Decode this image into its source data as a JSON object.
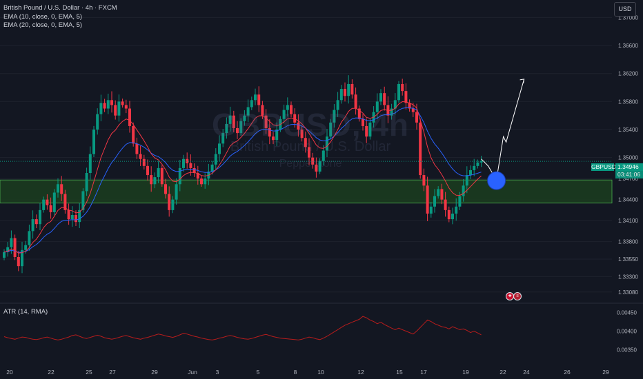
{
  "legend": {
    "title": "British Pound / U.S. Dollar · 4h · FXCM",
    "ema1": "EMA (10, close, 0, EMA, 5)",
    "ema2": "EMA (20, close, 0, EMA, 5)",
    "atr": "ATR (14, RMA)"
  },
  "currency": "USD",
  "watermark": {
    "symbol": "GBPUSD, 4h",
    "name": "British Pound / U.S. Dollar",
    "brand": "Pepperstone"
  },
  "price_tag": {
    "symbol": "GBPUSD",
    "price": "1.34946",
    "countdown": "03:41:06"
  },
  "colors": {
    "up": "#089981",
    "down": "#f23645",
    "ema10": "#f23645",
    "ema20": "#2962ff",
    "zone": "#1b3d1e",
    "zone_edge": "#4caf50"
  },
  "icons": [
    "flag-uk-icon",
    "flag-us-icon"
  ],
  "chart_data": {
    "type": "candlestick",
    "x_ticks": [
      "20",
      "22",
      "25",
      "27",
      "29",
      "Jun",
      "3",
      "5",
      "8",
      "10",
      "12",
      "15",
      "17",
      "19",
      "22",
      "24",
      "26",
      "29"
    ],
    "y_ticks": [
      "1.37000",
      "1.36600",
      "1.36200",
      "1.35800",
      "1.35400",
      "1.35000",
      "1.34700",
      "1.34400",
      "1.34100",
      "1.33800",
      "1.33550",
      "1.33300",
      "1.33080"
    ],
    "atr_ticks": [
      "0.00450",
      "0.00400",
      "0.00350"
    ],
    "ylim": [
      1.3295,
      1.3725
    ],
    "atr_ylim": [
      0.0033,
      0.0047
    ],
    "current_price": 1.34946,
    "zone": [
      1.3435,
      1.3468
    ],
    "closes": [
      1.3365,
      1.3372,
      1.3385,
      1.3358,
      1.3345,
      1.3368,
      1.3375,
      1.3395,
      1.3412,
      1.3405,
      1.3425,
      1.344,
      1.3432,
      1.3422,
      1.345,
      1.3462,
      1.3448,
      1.3425,
      1.3412,
      1.3418,
      1.3408,
      1.3425,
      1.3452,
      1.3478,
      1.3505,
      1.354,
      1.3562,
      1.3578,
      1.357,
      1.3582,
      1.3575,
      1.356,
      1.358,
      1.3575,
      1.357,
      1.3545,
      1.352,
      1.3505,
      1.3498,
      1.3488,
      1.3475,
      1.3462,
      1.3472,
      1.3485,
      1.3462,
      1.3448,
      1.3425,
      1.344,
      1.3462,
      1.3485,
      1.3498,
      1.3492,
      1.3485,
      1.3478,
      1.347,
      1.3462,
      1.347,
      1.348,
      1.349,
      1.3505,
      1.352,
      1.3535,
      1.3548,
      1.356,
      1.3542,
      1.3535,
      1.3552,
      1.356,
      1.3572,
      1.3582,
      1.359,
      1.3575,
      1.356,
      1.3542,
      1.353,
      1.3525,
      1.354,
      1.3555,
      1.3568,
      1.3575,
      1.3562,
      1.355,
      1.354,
      1.3528,
      1.3515,
      1.35,
      1.349,
      1.348,
      1.3495,
      1.351,
      1.353,
      1.355,
      1.3568,
      1.3582,
      1.3598,
      1.3588,
      1.3605,
      1.359,
      1.357,
      1.3555,
      1.3545,
      1.353,
      1.355,
      1.3565,
      1.358,
      1.3592,
      1.3575,
      1.356,
      1.357,
      1.3582,
      1.3605,
      1.3595,
      1.3578,
      1.357,
      1.3565,
      1.355,
      1.3475,
      1.346,
      1.342,
      1.343,
      1.3445,
      1.3455,
      1.344,
      1.3425,
      1.3412,
      1.342,
      1.343,
      1.3445,
      1.346,
      1.3475,
      1.3482,
      1.3488,
      1.3493,
      1.3495
    ],
    "atr": [
      0.00385,
      0.00382,
      0.0038,
      0.00378,
      0.00381,
      0.00384,
      0.00383,
      0.0038,
      0.00378,
      0.00377,
      0.00379,
      0.00382,
      0.00384,
      0.00381,
      0.00378,
      0.00376,
      0.00378,
      0.00381,
      0.00384,
      0.00388,
      0.0039,
      0.00386,
      0.00382,
      0.0038,
      0.00383,
      0.00386,
      0.00389,
      0.00386,
      0.00382,
      0.0038,
      0.00378,
      0.0038,
      0.00383,
      0.00386,
      0.00388,
      0.00385,
      0.00382,
      0.0038,
      0.00378,
      0.00381,
      0.00383,
      0.00386,
      0.00389,
      0.00392,
      0.0039,
      0.00387,
      0.00385,
      0.00383,
      0.00386,
      0.0039,
      0.00394,
      0.00392,
      0.00389,
      0.00386,
      0.00384,
      0.00381,
      0.00379,
      0.00377,
      0.00376,
      0.00378,
      0.00381,
      0.00383,
      0.00386,
      0.00388,
      0.00386,
      0.00383,
      0.00381,
      0.00379,
      0.00378,
      0.0038,
      0.00383,
      0.00386,
      0.00389,
      0.00391,
      0.00388,
      0.00385,
      0.00383,
      0.00381,
      0.0038,
      0.00379,
      0.00378,
      0.00377,
      0.00376,
      0.00378,
      0.00381,
      0.00384,
      0.00382,
      0.00379,
      0.00377,
      0.00381,
      0.00386,
      0.00392,
      0.00398,
      0.00404,
      0.0041,
      0.00416,
      0.0042,
      0.00424,
      0.00428,
      0.00432,
      0.0044,
      0.00436,
      0.0043,
      0.00426,
      0.0042,
      0.00424,
      0.00418,
      0.00413,
      0.00408,
      0.00404,
      0.00408,
      0.00404,
      0.004,
      0.00396,
      0.00392,
      0.004,
      0.0041,
      0.0042,
      0.0043,
      0.00426,
      0.0042,
      0.00416,
      0.00412,
      0.0041,
      0.00406,
      0.00412,
      0.00408,
      0.00404,
      0.00406,
      0.00402,
      0.00396,
      0.004,
      0.00395,
      0.0039
    ]
  }
}
